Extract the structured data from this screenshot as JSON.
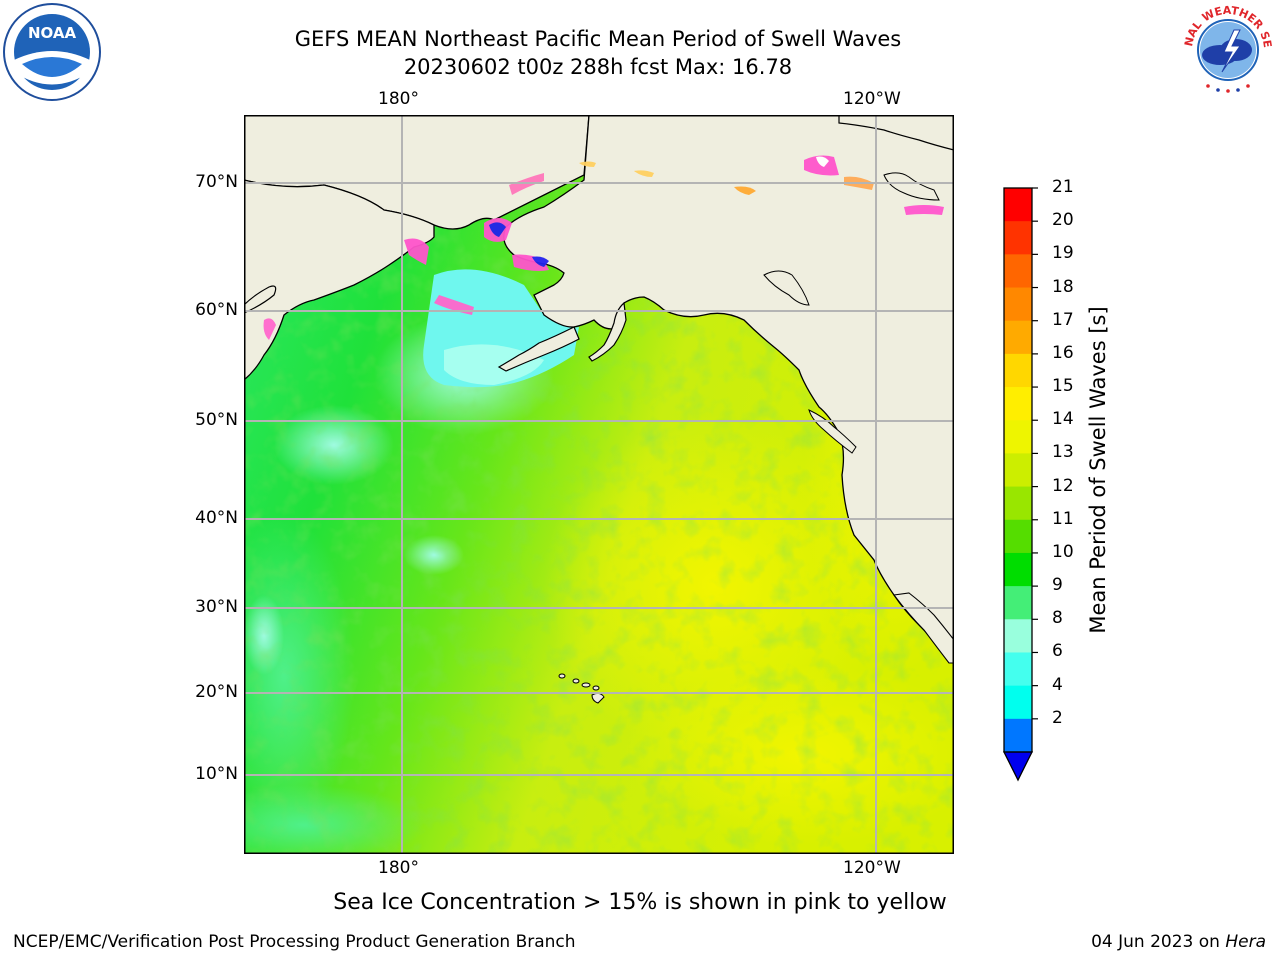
{
  "title": {
    "line1": "GEFS MEAN Northeast Pacific Mean Period of Swell Waves",
    "line2": "20230602 t00z 288h fcst   Max: 16.78"
  },
  "map": {
    "top_lon_labels": [
      "180°",
      "120°W"
    ],
    "bottom_lon_labels": [
      "180°",
      "120°W"
    ],
    "lat_labels": [
      "70°N",
      "60°N",
      "50°N",
      "40°N",
      "30°N",
      "20°N",
      "10°N"
    ],
    "gridlines": true
  },
  "colorbar": {
    "label": "Mean Period of Swell Waves [s]",
    "ticks": [
      "21",
      "20",
      "19",
      "18",
      "17",
      "16",
      "15",
      "14",
      "13",
      "12",
      "11",
      "10",
      "9",
      "8",
      "6",
      "4",
      "2"
    ],
    "colors": [
      "#ff0000",
      "#ff3300",
      "#ff6600",
      "#ff8800",
      "#ffaa00",
      "#ffd700",
      "#ffee00",
      "#eef500",
      "#ccee00",
      "#99e600",
      "#55dd00",
      "#00dd00",
      "#44ee77",
      "#99ffdd",
      "#44ffee",
      "#00ffee",
      "#0077ff"
    ],
    "underflow_color": "#0000ee"
  },
  "logos": {
    "noaa": "NOAA",
    "nws": "NATIONAL WEATHER SERVICE"
  },
  "note": "Sea Ice Concentration > 15% is shown in pink to yellow",
  "credit_left": "NCEP/EMC/Verification Post Processing Product Generation Branch",
  "credit_right_date": "04 Jun 2023 on",
  "credit_right_host": "Hera"
}
